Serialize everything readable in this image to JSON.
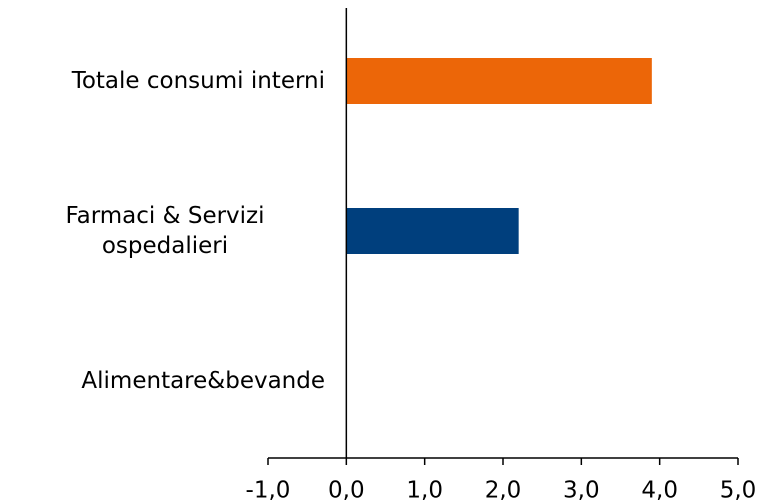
{
  "chart_data": {
    "type": "bar",
    "orientation": "horizontal",
    "categories": [
      "Totale consumi interni",
      "Farmaci & Servizi ospedalieri",
      "Alimentare&bevande"
    ],
    "values": [
      3.9,
      2.2,
      0.0
    ],
    "colors": [
      "#ec6608",
      "#003f7d",
      "#003f7d"
    ],
    "xlim": [
      -1,
      5
    ],
    "xticks": [
      {
        "value": -1,
        "label": "-1,0"
      },
      {
        "value": 0,
        "label": "0,0"
      },
      {
        "value": 1,
        "label": "1,0"
      },
      {
        "value": 2,
        "label": "2,0"
      },
      {
        "value": 3,
        "label": "3,0"
      },
      {
        "value": 4,
        "label": "4,0"
      },
      {
        "value": 5,
        "label": "5,0"
      }
    ],
    "grid": false
  }
}
